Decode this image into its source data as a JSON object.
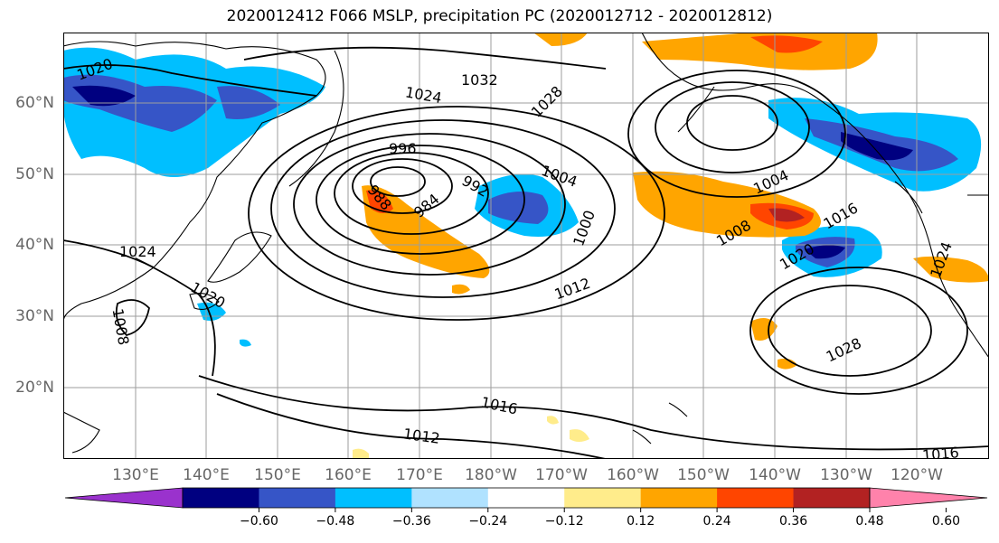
{
  "title": "2020012412 F066 MSLP, precipitation PC (2020012712 - 2020012812)",
  "lat_labels": [
    "60°N",
    "50°N",
    "40°N",
    "30°N",
    "20°N"
  ],
  "lon_labels": [
    "130°E",
    "140°E",
    "150°E",
    "160°E",
    "170°E",
    "180°W",
    "170°W",
    "160°W",
    "150°W",
    "140°W",
    "130°W",
    "120°W"
  ],
  "isobar_labels": [
    "1020",
    "1024",
    "1032",
    "1028",
    "996",
    "1004",
    "992",
    "984",
    "988",
    "1000",
    "1004",
    "1008",
    "1016",
    "1012",
    "1020",
    "1024",
    "1020",
    "1008",
    "1028",
    "1016",
    "1012",
    "1016",
    "1024"
  ],
  "colorbar": {
    "colors": [
      "#9a32cd",
      "#000080",
      "#3655c7",
      "#00bfff",
      "#b0e2ff",
      "#ffffff",
      "#ffec8b",
      "#ffa500",
      "#ff4500",
      "#b22222",
      "#ff82ab"
    ],
    "ticks": [
      "−0.60",
      "−0.48",
      "−0.36",
      "−0.24",
      "−0.12",
      "0.12",
      "0.24",
      "0.36",
      "0.48",
      "0.60"
    ]
  }
}
